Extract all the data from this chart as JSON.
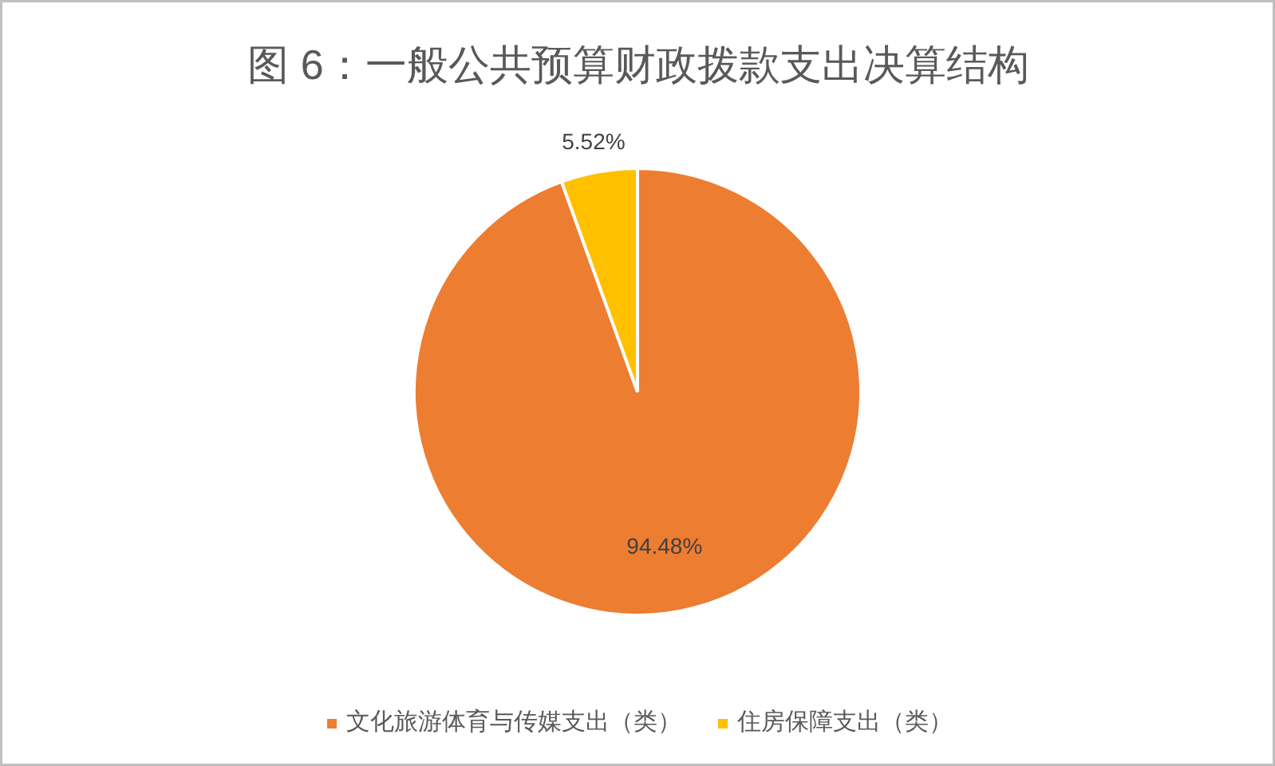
{
  "chart_data": {
    "type": "pie",
    "title": "图 6：一般公共预算财政拨款支出决算结构",
    "categories": [
      "文化旅游体育与传媒支出（类）",
      "住房保障支出（类）"
    ],
    "values": [
      94.48,
      5.52
    ],
    "colors": [
      "#ed7d31",
      "#ffc000"
    ],
    "value_labels": [
      "94.48%",
      "5.52%"
    ],
    "legend": "bottom"
  }
}
